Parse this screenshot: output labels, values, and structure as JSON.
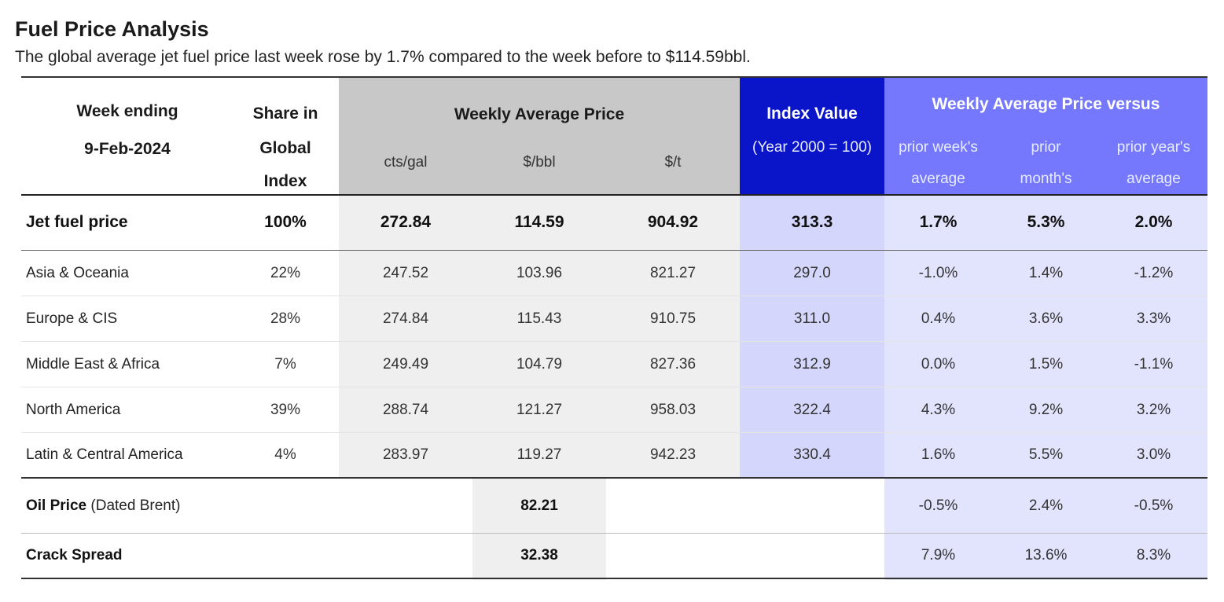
{
  "title": "Fuel Price Analysis",
  "subtitle": "The global average jet fuel price last week rose by 1.7% compared to the week before to $114.59bbl.",
  "colors": {
    "weekly_avg_header_bg": "#c8c8c8",
    "weekly_avg_body_bg": "#efefef",
    "index_header_bg": "#0a14c8",
    "index_body_bg": "#d4d6fb",
    "versus_header_bg": "#7578fc",
    "versus_body_bg": "#e2e3fd"
  },
  "header": {
    "week_ending_label": "Week ending",
    "week_ending_date": "9-Feb-2024",
    "share_label": [
      "Share in",
      "Global",
      "Index"
    ],
    "weekly_avg_price_label": "Weekly Average Price",
    "units": [
      "cts/gal",
      "$/bbl",
      "$/t"
    ],
    "index_value_label": "Index Value",
    "index_base": "(Year 2000 = 100)",
    "versus_label": "Weekly Average Price versus",
    "versus_cols": [
      [
        "prior week's",
        "average"
      ],
      [
        "prior",
        "month's"
      ],
      [
        "prior year's",
        "average"
      ]
    ]
  },
  "jet_fuel": {
    "label": "Jet fuel price",
    "share": "100%",
    "cts_gal": "272.84",
    "usd_bbl": "114.59",
    "usd_t": "904.92",
    "index": "313.3",
    "vs_week": "1.7%",
    "vs_month": "5.3%",
    "vs_year": "2.0%"
  },
  "regions": [
    {
      "label": "Asia & Oceania",
      "share": "22%",
      "cts_gal": "247.52",
      "usd_bbl": "103.96",
      "usd_t": "821.27",
      "index": "297.0",
      "vs_week": "-1.0%",
      "vs_month": "1.4%",
      "vs_year": "-1.2%"
    },
    {
      "label": "Europe & CIS",
      "share": "28%",
      "cts_gal": "274.84",
      "usd_bbl": "115.43",
      "usd_t": "910.75",
      "index": "311.0",
      "vs_week": "0.4%",
      "vs_month": "3.6%",
      "vs_year": "3.3%"
    },
    {
      "label": "Middle East & Africa",
      "share": "7%",
      "cts_gal": "249.49",
      "usd_bbl": "104.79",
      "usd_t": "827.36",
      "index": "312.9",
      "vs_week": "0.0%",
      "vs_month": "1.5%",
      "vs_year": "-1.1%"
    },
    {
      "label": "North America",
      "share": "39%",
      "cts_gal": "288.74",
      "usd_bbl": "121.27",
      "usd_t": "958.03",
      "index": "322.4",
      "vs_week": "4.3%",
      "vs_month": "9.2%",
      "vs_year": "3.2%"
    },
    {
      "label": "Latin & Central America",
      "share": "4%",
      "cts_gal": "283.97",
      "usd_bbl": "119.27",
      "usd_t": "942.23",
      "index": "330.4",
      "vs_week": "1.6%",
      "vs_month": "5.5%",
      "vs_year": "3.0%"
    }
  ],
  "oil_price": {
    "label_bold": "Oil Price",
    "label_note": "(Dated Brent)",
    "usd_bbl": "82.21",
    "vs_week": "-0.5%",
    "vs_month": "2.4%",
    "vs_year": "-0.5%"
  },
  "crack_spread": {
    "label": "Crack Spread",
    "usd_bbl": "32.38",
    "vs_week": "7.9%",
    "vs_month": "13.6%",
    "vs_year": "8.3%"
  }
}
